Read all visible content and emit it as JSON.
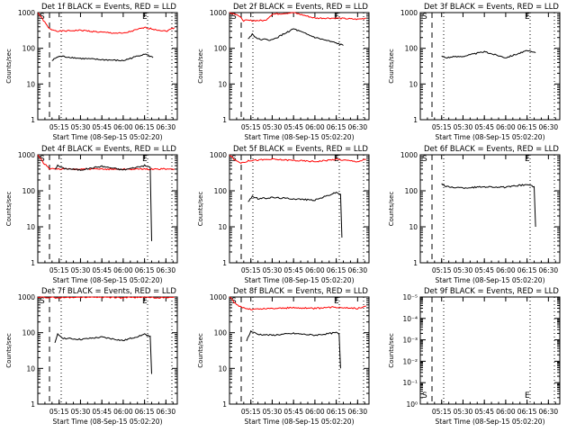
{
  "chart_data": [
    {
      "type": "line",
      "title": "Det 1f BLACK = Events, RED = LLD",
      "xlabel": "",
      "ylabel": "Counts/sec",
      "ytick_labels": [
        "1",
        "10",
        "100",
        "1000"
      ],
      "xtick_labels": [
        "05:15",
        "05:30",
        "05:45",
        "06:00",
        "06:15",
        "06:30"
      ],
      "markers": [
        "S",
        "E"
      ],
      "ylim": [
        1,
        1000
      ],
      "xlim": [
        "05:00",
        "06:38"
      ],
      "series": [
        {
          "color": "#ff0000",
          "x": [
            "05:00",
            "05:04",
            "05:08",
            "05:15",
            "05:30",
            "05:45",
            "06:00",
            "06:15",
            "06:30",
            "06:36"
          ],
          "values": [
            1000,
            600,
            350,
            300,
            320,
            280,
            260,
            380,
            300,
            380
          ]
        },
        {
          "color": "#000000",
          "x": [
            "05:10",
            "05:13",
            "05:16",
            "05:30",
            "05:45",
            "06:00",
            "06:15",
            "06:21"
          ],
          "values": [
            45,
            55,
            60,
            52,
            48,
            45,
            70,
            55
          ]
        }
      ]
    },
    {
      "type": "line",
      "title": "Det 2f BLACK = Events, RED = LLD",
      "xlabel": "",
      "ylabel": "Counts/sec",
      "ytick_labels": [
        "1",
        "10",
        "100",
        "1000"
      ],
      "xtick_labels": [
        "05:15",
        "05:30",
        "05:45",
        "06:00",
        "06:15",
        "06:30"
      ],
      "markers": [
        "S",
        "E"
      ],
      "ylim": [
        1,
        1000
      ],
      "xlim": [
        "05:00",
        "06:38"
      ],
      "series": [
        {
          "color": "#ff0000",
          "x": [
            "05:00",
            "05:05",
            "05:10",
            "05:25",
            "05:30",
            "05:45",
            "06:00",
            "06:15",
            "06:30",
            "06:36"
          ],
          "values": [
            1000,
            900,
            600,
            600,
            900,
            1000,
            700,
            700,
            650,
            700
          ]
        },
        {
          "color": "#000000",
          "x": [
            "05:13",
            "05:16",
            "05:20",
            "05:30",
            "05:45",
            "06:00",
            "06:15",
            "06:20"
          ],
          "values": [
            180,
            250,
            180,
            170,
            350,
            200,
            140,
            120
          ]
        }
      ]
    },
    {
      "type": "line",
      "title": "Det 3f BLACK = Events, RED = LLD",
      "xlabel": "",
      "ylabel": "Counts/sec",
      "ytick_labels": [
        "1",
        "10",
        "100",
        "1000"
      ],
      "xtick_labels": [
        "05:15",
        "05:30",
        "05:45",
        "06:00",
        "06:15",
        "06:30"
      ],
      "markers": [
        "S",
        "E"
      ],
      "ylim": [
        1,
        1000
      ],
      "xlim": [
        "05:00",
        "06:38"
      ],
      "series": [
        {
          "color": "#000000",
          "x": [
            "05:15",
            "05:18",
            "05:30",
            "05:45",
            "06:00",
            "06:15",
            "06:21"
          ],
          "values": [
            60,
            55,
            60,
            80,
            55,
            85,
            75
          ]
        }
      ]
    },
    {
      "type": "line",
      "title": "Det 4f BLACK = Events, RED = LLD",
      "xlabel": "",
      "ylabel": "Counts/sec",
      "ytick_labels": [
        "1",
        "10",
        "100",
        "1000"
      ],
      "xtick_labels": [
        "05:15",
        "05:30",
        "05:45",
        "06:00",
        "06:15",
        "06:30"
      ],
      "markers": [
        "S",
        "E"
      ],
      "ylim": [
        1,
        1000
      ],
      "xlim": [
        "05:00",
        "06:38"
      ],
      "series": [
        {
          "color": "#ff0000",
          "x": [
            "05:00",
            "05:04",
            "05:08",
            "05:15",
            "05:30",
            "06:00",
            "06:30",
            "06:36"
          ],
          "values": [
            1000,
            600,
            420,
            400,
            400,
            400,
            400,
            400
          ]
        },
        {
          "color": "#000000",
          "x": [
            "05:12",
            "05:14",
            "05:18",
            "05:30",
            "05:45",
            "06:00",
            "06:15",
            "06:19",
            "06:20"
          ],
          "values": [
            400,
            500,
            420,
            380,
            480,
            380,
            500,
            450,
            4
          ]
        }
      ]
    },
    {
      "type": "line",
      "title": "Det 5f BLACK = Events, RED = LLD",
      "xlabel": "",
      "ylabel": "Counts/sec",
      "ytick_labels": [
        "1",
        "10",
        "100",
        "1000"
      ],
      "xtick_labels": [
        "05:15",
        "05:30",
        "05:45",
        "06:00",
        "06:15",
        "06:30"
      ],
      "markers": [
        "S",
        "E"
      ],
      "ylim": [
        1,
        1000
      ],
      "xlim": [
        "05:00",
        "06:38"
      ],
      "series": [
        {
          "color": "#ff0000",
          "x": [
            "05:00",
            "05:04",
            "05:08",
            "05:15",
            "05:30",
            "05:45",
            "06:00",
            "06:15",
            "06:30",
            "06:36"
          ],
          "values": [
            1000,
            700,
            600,
            700,
            750,
            700,
            650,
            750,
            650,
            750
          ]
        },
        {
          "color": "#000000",
          "x": [
            "05:13",
            "05:16",
            "05:20",
            "05:30",
            "05:45",
            "06:00",
            "06:15",
            "06:18",
            "06:19"
          ],
          "values": [
            50,
            70,
            60,
            65,
            60,
            55,
            90,
            80,
            5
          ]
        }
      ]
    },
    {
      "type": "line",
      "title": "Det 6f BLACK = Events, RED = LLD",
      "xlabel": "",
      "ylabel": "Counts/sec",
      "ytick_labels": [
        "1",
        "10",
        "100",
        "1000"
      ],
      "xtick_labels": [
        "05:15",
        "05:30",
        "05:45",
        "06:00",
        "06:15",
        "06:30"
      ],
      "markers": [
        "S",
        "E"
      ],
      "ylim": [
        1,
        1000
      ],
      "xlim": [
        "05:00",
        "06:38"
      ],
      "series": [
        {
          "color": "#000000",
          "x": [
            "05:15",
            "05:18",
            "05:30",
            "05:45",
            "06:00",
            "06:15",
            "06:20",
            "06:21"
          ],
          "values": [
            160,
            130,
            120,
            130,
            125,
            150,
            130,
            10
          ]
        }
      ]
    },
    {
      "type": "line",
      "title": "Det 7f BLACK = Events, RED = LLD",
      "xlabel": "",
      "ylabel": "Counts/sec",
      "ytick_labels": [
        "1",
        "10",
        "100",
        "1000"
      ],
      "xtick_labels": [
        "05:15",
        "05:30",
        "05:45",
        "06:00",
        "06:15",
        "06:30"
      ],
      "markers": [
        "S",
        "E"
      ],
      "ylim": [
        1,
        1000
      ],
      "xlim": [
        "05:00",
        "06:38"
      ],
      "series": [
        {
          "color": "#ff0000",
          "x": [
            "05:00",
            "05:15",
            "05:30",
            "05:45",
            "06:00",
            "06:15",
            "06:30",
            "06:36"
          ],
          "values": [
            1000,
            950,
            1000,
            1000,
            950,
            1000,
            950,
            1000
          ]
        },
        {
          "color": "#000000",
          "x": [
            "05:12",
            "05:14",
            "05:18",
            "05:30",
            "05:45",
            "06:00",
            "06:15",
            "06:19",
            "06:20"
          ],
          "values": [
            50,
            90,
            70,
            65,
            75,
            60,
            90,
            80,
            7
          ]
        }
      ]
    },
    {
      "type": "line",
      "title": "Det 8f BLACK = Events, RED = LLD",
      "xlabel": "",
      "ylabel": "Counts/sec",
      "ytick_labels": [
        "1",
        "10",
        "100",
        "1000"
      ],
      "xtick_labels": [
        "05:15",
        "05:30",
        "05:45",
        "06:00",
        "06:15",
        "06:30"
      ],
      "markers": [
        "S",
        "E"
      ],
      "ylim": [
        1,
        1000
      ],
      "xlim": [
        "05:00",
        "06:38"
      ],
      "series": [
        {
          "color": "#ff0000",
          "x": [
            "05:00",
            "05:05",
            "05:10",
            "05:15",
            "05:30",
            "05:45",
            "06:00",
            "06:15",
            "06:30",
            "06:36"
          ],
          "values": [
            1000,
            600,
            500,
            450,
            480,
            500,
            480,
            520,
            480,
            550
          ]
        },
        {
          "color": "#000000",
          "x": [
            "05:12",
            "05:15",
            "05:20",
            "05:30",
            "05:45",
            "06:00",
            "06:15",
            "06:17",
            "06:18"
          ],
          "values": [
            60,
            110,
            90,
            85,
            95,
            85,
            100,
            90,
            10
          ]
        }
      ]
    },
    {
      "type": "line",
      "title": "Det 9f BLACK = Events, RED = LLD",
      "xlabel": "",
      "ylabel": "Counts/sec",
      "ytick_labels": [
        "10⁰",
        "10⁻¹",
        "10⁻²",
        "10⁻³",
        "10⁻⁴",
        "10⁻⁵"
      ],
      "xtick_labels": [
        "05:15",
        "05:30",
        "05:45",
        "06:00",
        "06:15",
        "06:30"
      ],
      "markers": [
        "S",
        "E"
      ],
      "ylim": [
        1,
        1e-05
      ],
      "xlim": [
        "05:00",
        "06:38"
      ],
      "series": []
    }
  ],
  "shared_xlabel": "Start Time (08-Sep-15 05:02:20)"
}
